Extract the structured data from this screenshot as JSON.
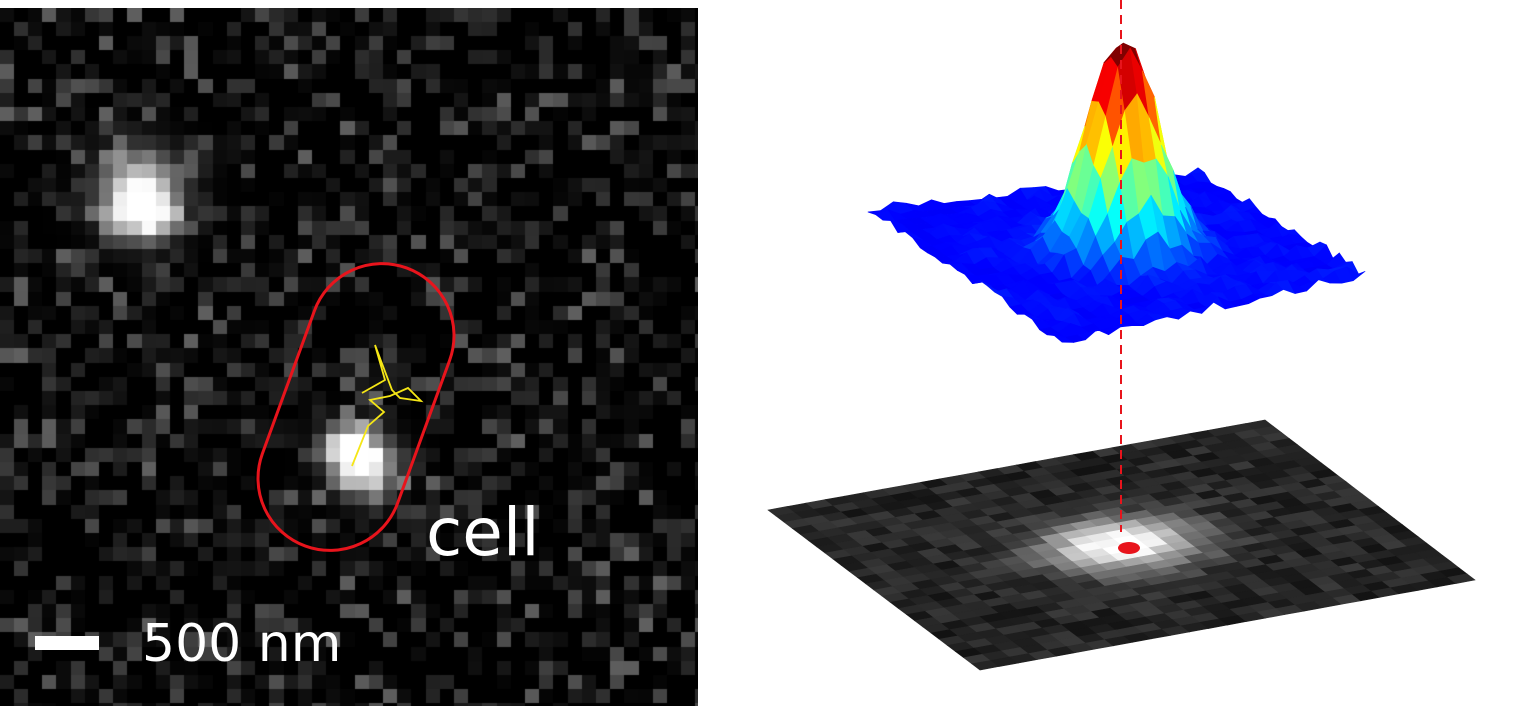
{
  "micrograph": {
    "cell_label": "cell",
    "scale_label": "500 nm",
    "outline_color": "#e8141c",
    "track_color": "#f5e616"
  },
  "psf_plot": {
    "marker_color": "#e8141c",
    "colormap": "jet"
  }
}
